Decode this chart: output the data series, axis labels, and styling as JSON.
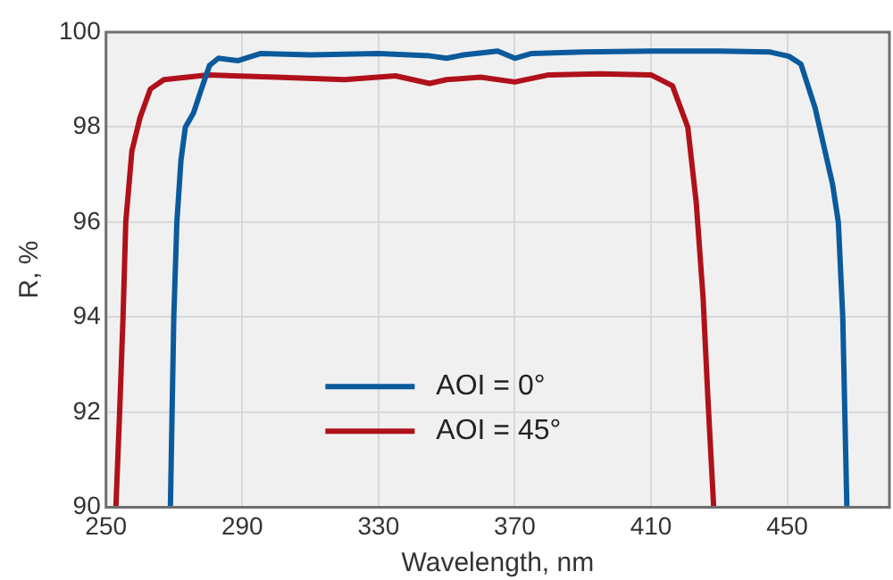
{
  "chart_data": {
    "type": "line",
    "xlabel": "Wavelength, nm",
    "ylabel": "R, %",
    "xlim": [
      250,
      480
    ],
    "xticks": [
      250,
      290,
      330,
      370,
      410,
      450
    ],
    "ylim": [
      90,
      100
    ],
    "yticks": [
      90,
      92,
      94,
      96,
      98,
      100
    ],
    "grid": true,
    "legend": "bottom",
    "marker": "none",
    "line_style": "solid",
    "series": [
      {
        "name": "AOI = 0°",
        "color": "#0a5a9c",
        "x": [
          268.9,
          269.9,
          270.8,
          272,
          273.3,
          275.7,
          278,
          280.4,
          283,
          288.8,
          295.5,
          310,
          330,
          345,
          350,
          355,
          365,
          370,
          375,
          390,
          410,
          430,
          445,
          450.5,
          454,
          458.2,
          463.3,
          465,
          466.3,
          467.5
        ],
        "values": [
          90,
          94,
          96,
          97.3,
          98,
          98.3,
          98.8,
          99.3,
          99.45,
          99.4,
          99.55,
          99.52,
          99.55,
          99.5,
          99.45,
          99.52,
          99.6,
          99.45,
          99.55,
          99.58,
          99.6,
          99.6,
          99.58,
          99.49,
          99.33,
          98.4,
          96.8,
          96,
          94,
          90
        ]
      },
      {
        "name": "AOI = 45°",
        "color": "#b0101a",
        "x": [
          252.9,
          254,
          255,
          255.8,
          257.6,
          260,
          263,
          267,
          280,
          300,
          320,
          335,
          345,
          350,
          360,
          370,
          380,
          395,
          410,
          416.3,
          420.8,
          423.3,
          425.3,
          426.7,
          428.4
        ],
        "values": [
          90,
          92,
          94,
          96,
          97.5,
          98.2,
          98.8,
          99,
          99.1,
          99.05,
          99.0,
          99.08,
          98.92,
          99.0,
          99.05,
          98.95,
          99.1,
          99.12,
          99.1,
          98.87,
          98,
          96.4,
          94.4,
          92.3,
          90
        ]
      }
    ]
  }
}
